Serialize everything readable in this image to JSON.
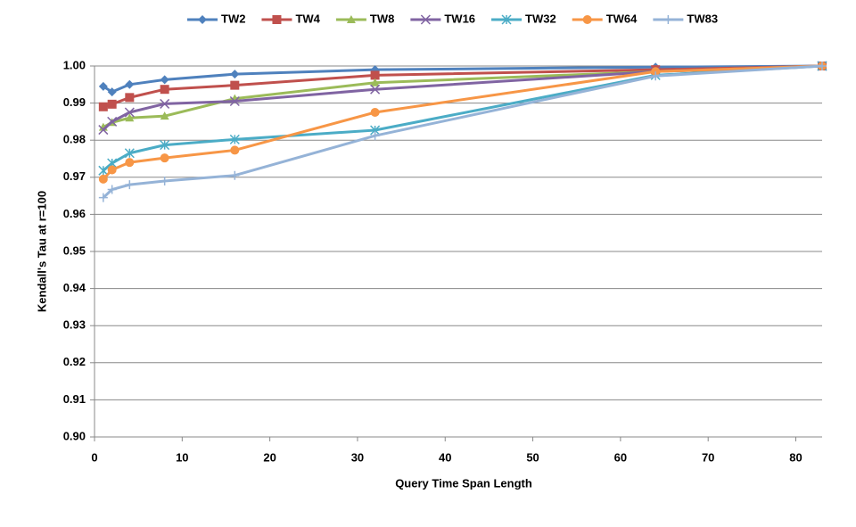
{
  "chart_data": {
    "type": "line",
    "x_label": "Query Time Span Length",
    "y_label": "Kendall's Tau at r=100",
    "x": [
      1,
      2,
      4,
      8,
      16,
      32,
      64,
      83
    ],
    "xlim": [
      0,
      83
    ],
    "xticks": [
      0,
      10,
      20,
      30,
      40,
      50,
      60,
      70,
      80
    ],
    "ylim": [
      0.9,
      1.0
    ],
    "yticks": [
      {
        "value": 0.9,
        "label": "0.90"
      },
      {
        "value": 0.91,
        "label": "0.91"
      },
      {
        "value": 0.92,
        "label": "0.92"
      },
      {
        "value": 0.93,
        "label": "0.93"
      },
      {
        "value": 0.94,
        "label": "0.94"
      },
      {
        "value": 0.95,
        "label": "0.95"
      },
      {
        "value": 0.96,
        "label": "0.96"
      },
      {
        "value": 0.97,
        "label": "0.97"
      },
      {
        "value": 0.98,
        "label": "0.98"
      },
      {
        "value": 0.99,
        "label": "0.99"
      },
      {
        "value": 1.0,
        "label": "1.00"
      }
    ],
    "grid": true,
    "legend": "top",
    "series": [
      {
        "name": "TW2",
        "color": "#4f81bd",
        "marker": "diamond",
        "values": [
          0.9945,
          0.993,
          0.995,
          0.9963,
          0.9978,
          0.999,
          0.9997,
          1.0
        ]
      },
      {
        "name": "TW4",
        "color": "#c0504d",
        "marker": "square",
        "values": [
          0.989,
          0.9897,
          0.9915,
          0.9937,
          0.9948,
          0.9975,
          0.999,
          1.0
        ]
      },
      {
        "name": "TW8",
        "color": "#9bbb59",
        "marker": "triangle",
        "values": [
          0.9835,
          0.9848,
          0.986,
          0.9865,
          0.9912,
          0.9955,
          0.9985,
          1.0
        ]
      },
      {
        "name": "TW16",
        "color": "#8064a2",
        "marker": "x",
        "values": [
          0.9828,
          0.985,
          0.9875,
          0.9898,
          0.9905,
          0.9937,
          0.9985,
          1.0
        ]
      },
      {
        "name": "TW32",
        "color": "#4bacc6",
        "marker": "star",
        "values": [
          0.9718,
          0.9738,
          0.9765,
          0.9787,
          0.9802,
          0.9827,
          0.9975,
          1.0
        ]
      },
      {
        "name": "TW64",
        "color": "#f79646",
        "marker": "circle",
        "values": [
          0.9695,
          0.972,
          0.974,
          0.9752,
          0.9773,
          0.9875,
          0.9985,
          1.0
        ]
      },
      {
        "name": "TW83",
        "color": "#95b3d7",
        "marker": "plus",
        "values": [
          0.9645,
          0.9667,
          0.968,
          0.969,
          0.9705,
          0.9812,
          0.9973,
          1.0
        ]
      }
    ]
  }
}
